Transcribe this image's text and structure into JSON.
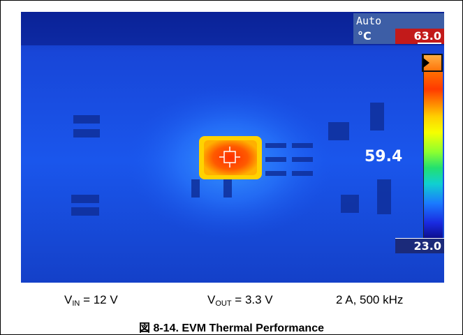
{
  "camera_hud": {
    "mode": "Auto",
    "unit": "°C",
    "max_temp": "63.0",
    "spot_temp": "59.4",
    "min_temp": "23.0"
  },
  "conditions": {
    "vin_symbol": "V",
    "vin_sub": "IN",
    "vin_value": " = 12 V",
    "vout_symbol": "V",
    "vout_sub": "OUT",
    "vout_value": " = 3.3 V",
    "load": "2 A, 500 kHz"
  },
  "figure": {
    "title": "図 8-14. EVM Thermal Performance"
  }
}
